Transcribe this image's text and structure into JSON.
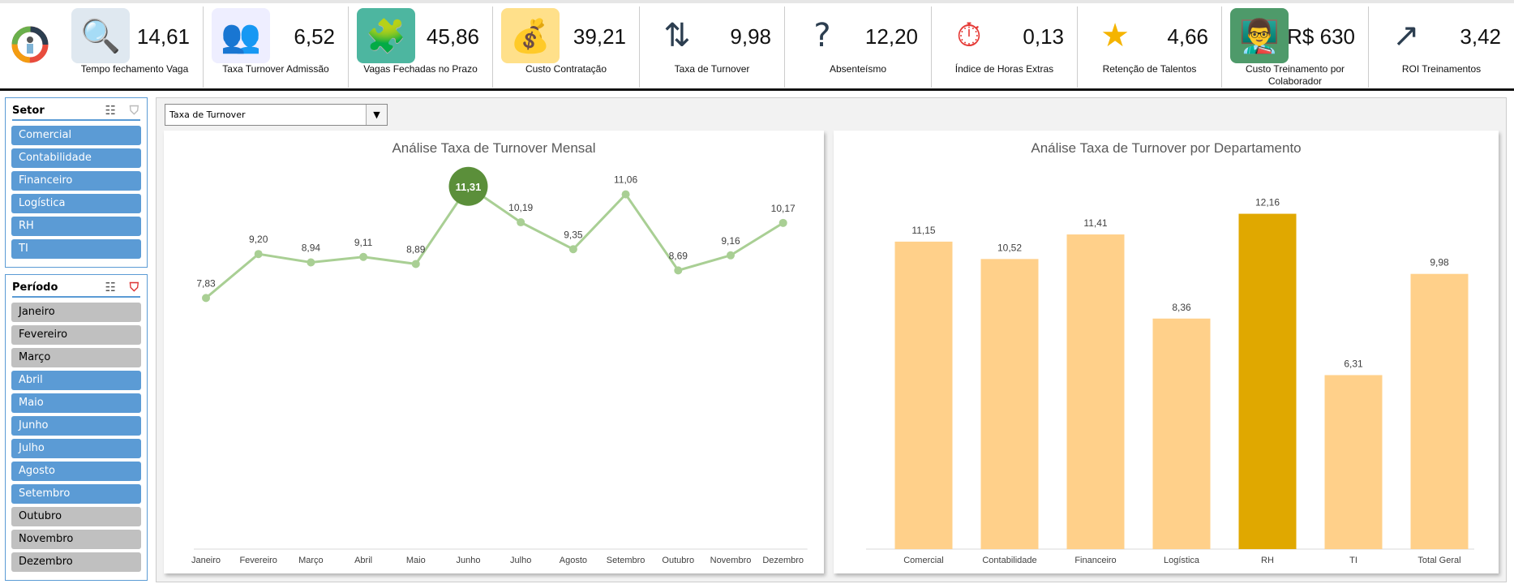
{
  "kpis": [
    {
      "value": "14,61",
      "label": "Tempo fechamento Vaga",
      "icon": "search-person-icon"
    },
    {
      "value": "6,52",
      "label": "Taxa Turnover Admissão",
      "icon": "people-cycle-icon"
    },
    {
      "value": "45,86",
      "label": "Vagas Fechadas  no Prazo",
      "icon": "puzzle-clock-icon"
    },
    {
      "value": "39,21",
      "label": "Custo Contratação",
      "icon": "coins-icon"
    },
    {
      "value": "9,98",
      "label": "Taxa de Turnover",
      "icon": "people-swap-icon"
    },
    {
      "value": "12,20",
      "label": "Absenteísmo",
      "icon": "empty-desk-icon"
    },
    {
      "value": "0,13",
      "label": "Índice de Horas Extras",
      "icon": "stopwatch-plus-icon"
    },
    {
      "value": "4,66",
      "label": "Retenção de Talentos",
      "icon": "hands-star-icon"
    },
    {
      "value": "R$ 630",
      "label": "Custo Treinamento por Colaborador",
      "icon": "classroom-icon"
    },
    {
      "value": "3,42",
      "label": "ROI Treinamentos",
      "icon": "money-growth-icon"
    }
  ],
  "setor": {
    "title": "Setor",
    "items": [
      {
        "label": "Comercial",
        "selected": true
      },
      {
        "label": "Contabilidade",
        "selected": true
      },
      {
        "label": "Financeiro",
        "selected": true
      },
      {
        "label": "Logística",
        "selected": true
      },
      {
        "label": "RH",
        "selected": true
      },
      {
        "label": "TI",
        "selected": true
      }
    ]
  },
  "periodo": {
    "title": "Período",
    "items": [
      {
        "label": "Janeiro",
        "selected": false
      },
      {
        "label": "Fevereiro",
        "selected": false
      },
      {
        "label": "Março",
        "selected": false
      },
      {
        "label": "Abril",
        "selected": true
      },
      {
        "label": "Maio",
        "selected": true
      },
      {
        "label": "Junho",
        "selected": true
      },
      {
        "label": "Julho",
        "selected": true
      },
      {
        "label": "Agosto",
        "selected": true
      },
      {
        "label": "Setembro",
        "selected": true
      },
      {
        "label": "Outubro",
        "selected": false
      },
      {
        "label": "Novembro",
        "selected": false
      },
      {
        "label": "Dezembro",
        "selected": false
      }
    ]
  },
  "dropdown": {
    "value": "Taxa de Turnover"
  },
  "colors": {
    "line": "#a9cf94",
    "highlight": "#5b8f3a",
    "bar": "#ffd08a",
    "bar_highlight": "#e0a800",
    "slicer_selected": "#5b9bd5",
    "slicer_unselected": "#c0c0c0"
  },
  "chart_data": [
    {
      "type": "line",
      "title": "Análise Taxa de Turnover Mensal",
      "categories": [
        "Janeiro",
        "Fevereiro",
        "Março",
        "Abril",
        "Maio",
        "Junho",
        "Julho",
        "Agosto",
        "Setembro",
        "Outubro",
        "Novembro",
        "Dezembro"
      ],
      "values": [
        7.83,
        9.2,
        8.94,
        9.11,
        8.89,
        11.31,
        10.19,
        9.35,
        11.06,
        8.69,
        9.16,
        10.17
      ],
      "labels": [
        "7,83",
        "9,20",
        "8,94",
        "9,11",
        "8,89",
        "11,31",
        "10,19",
        "9,35",
        "11,06",
        "8,69",
        "9,16",
        "10,17"
      ],
      "highlight": "Junho",
      "ylim": [
        0,
        17.2
      ],
      "grid": false
    },
    {
      "type": "bar",
      "title": "Análise Taxa de Turnover  por Departamento",
      "categories": [
        "Comercial",
        "Contabilidade",
        "Financeiro",
        "Logística",
        "RH",
        "TI",
        "Total Geral"
      ],
      "values": [
        11.15,
        10.52,
        11.41,
        8.36,
        12.16,
        6.31,
        9.98
      ],
      "labels": [
        "11,15",
        "10,52",
        "11,41",
        "8,36",
        "12,16",
        "6,31",
        "9,98"
      ],
      "highlight": "RH",
      "ylim": [
        0,
        15
      ],
      "grid": false
    }
  ]
}
